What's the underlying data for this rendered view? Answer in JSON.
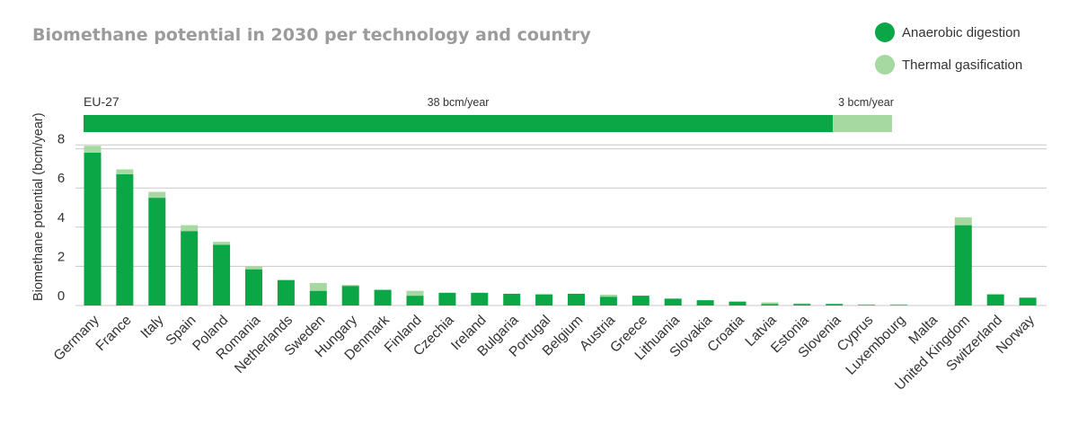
{
  "colors": {
    "anaerobic": "#0ba646",
    "thermal": "#a6d8a2",
    "grid": "#c8c8c8",
    "title": "#9b9b9b",
    "text": "#333333"
  },
  "chart_data": {
    "type": "bar",
    "stacked": true,
    "title": "Biomethane potential in 2030 per technology and country",
    "ylabel": "Biomethane potential (bcm/year)",
    "xlabel": "",
    "ylim": [
      0,
      8.5
    ],
    "yticks": [
      0,
      2,
      4,
      6,
      8
    ],
    "grid": true,
    "legend_position": "top-right",
    "eu27": {
      "label": "EU-27",
      "anaerobic_label": "38 bcm/year",
      "thermal_label": "3 bcm/year",
      "anaerobic": 38,
      "thermal": 3
    },
    "categories": [
      "Germany",
      "France",
      "Italy",
      "Spain",
      "Poland",
      "Romania",
      "Netherlands",
      "Sweden",
      "Hungary",
      "Denmark",
      "Finland",
      "Czechia",
      "Ireland",
      "Bulgaria",
      "Portugal",
      "Belgium",
      "Austria",
      "Greece",
      "Lithuania",
      "Slovakia",
      "Croatia",
      "Latvia",
      "Estonia",
      "Slovenia",
      "Cyprus",
      "Luxembourg",
      "Malta",
      "United Kingdom",
      "Switzerland",
      "Norway"
    ],
    "series": [
      {
        "name": "Anaerobic digestion",
        "values": [
          7.8,
          6.7,
          5.5,
          3.8,
          3.1,
          1.85,
          1.3,
          0.75,
          1.0,
          0.8,
          0.5,
          0.65,
          0.65,
          0.6,
          0.55,
          0.6,
          0.45,
          0.5,
          0.35,
          0.27,
          0.2,
          0.08,
          0.08,
          0.08,
          0.03,
          0.03,
          0.0,
          4.1,
          0.55,
          0.4
        ]
      },
      {
        "name": "Thermal gasification",
        "values": [
          0.35,
          0.25,
          0.3,
          0.3,
          0.15,
          0.15,
          0.0,
          0.4,
          0.05,
          0.0,
          0.25,
          0.0,
          0.0,
          0.0,
          0.05,
          0.0,
          0.1,
          0.0,
          0.0,
          0.0,
          0.0,
          0.08,
          0.03,
          0.0,
          0.03,
          0.03,
          0.0,
          0.4,
          0.05,
          0.0
        ]
      }
    ]
  }
}
